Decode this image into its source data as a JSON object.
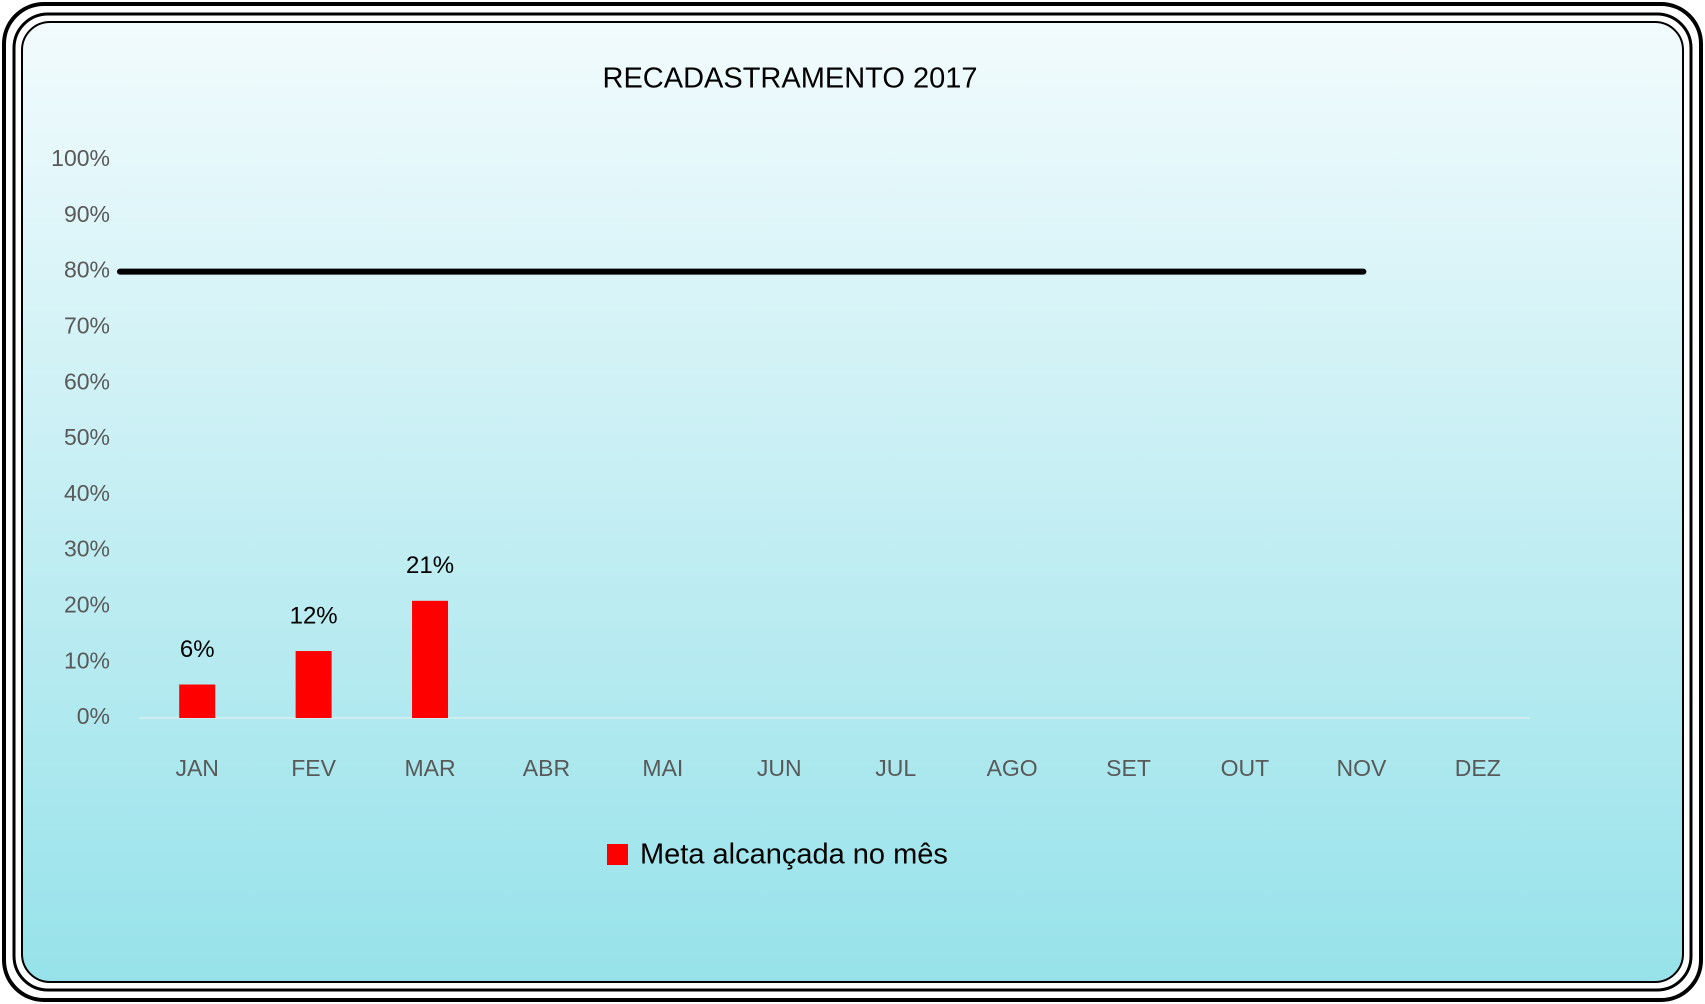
{
  "chart_data": {
    "type": "bar",
    "title": "RECADASTRAMENTO  2017",
    "categories": [
      "JAN",
      "FEV",
      "MAR",
      "ABR",
      "MAI",
      "JUN",
      "JUL",
      "AGO",
      "SET",
      "OUT",
      "NOV",
      "DEZ"
    ],
    "series": [
      {
        "name": "Meta alcançada no mês",
        "color": "#ff0000",
        "values": [
          6,
          12,
          21,
          null,
          null,
          null,
          null,
          null,
          null,
          null,
          null,
          null
        ],
        "value_labels": [
          "6%",
          "12%",
          "21%",
          null,
          null,
          null,
          null,
          null,
          null,
          null,
          null,
          null
        ]
      }
    ],
    "reference_line": {
      "value": 80,
      "color": "#000000"
    },
    "ylim": [
      0,
      100
    ],
    "yticks": [
      {
        "value": 0,
        "label": "0%"
      },
      {
        "value": 10,
        "label": "10%"
      },
      {
        "value": 20,
        "label": "20%"
      },
      {
        "value": 30,
        "label": "30%"
      },
      {
        "value": 40,
        "label": "40%"
      },
      {
        "value": 50,
        "label": "50%"
      },
      {
        "value": 60,
        "label": "60%"
      },
      {
        "value": 70,
        "label": "70%"
      },
      {
        "value": 80,
        "label": "80%"
      },
      {
        "value": 90,
        "label": "90%"
      },
      {
        "value": 100,
        "label": "100%"
      }
    ],
    "grid": false,
    "legend": "bottom"
  }
}
